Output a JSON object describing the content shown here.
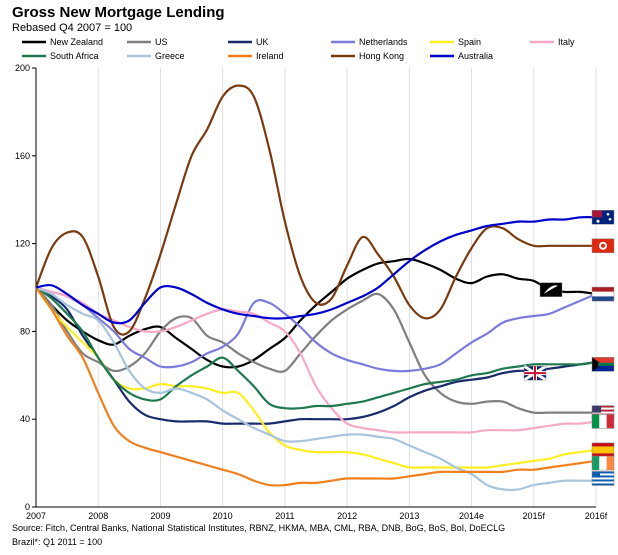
{
  "title": "Gross New Mortgage Lending",
  "subtitle": "Rebased Q4 2007 = 100",
  "footer": {
    "line1": "Source: Fitch, Central Banks, National Statistical Institutes, RBNZ, HKMA, MBA, CML, RBA, DNB, BoG, BoS, BoI, DoECLG",
    "line2": "Brazil*: Q1 2011 = 100"
  },
  "chart_data": {
    "type": "line",
    "title": "Gross New Mortgage Lending",
    "subtitle": "Rebased Q4 2007 = 100",
    "xlabel": "",
    "ylabel": "",
    "ylim": [
      0,
      200
    ],
    "yticks": [
      0,
      40,
      80,
      120,
      160,
      200
    ],
    "x_range": [
      2007,
      2016
    ],
    "xticks": [
      {
        "value": 2007,
        "label": "2007"
      },
      {
        "value": 2008,
        "label": "2008"
      },
      {
        "value": 2009,
        "label": "2009"
      },
      {
        "value": 2010,
        "label": "2010"
      },
      {
        "value": 2011,
        "label": "2011"
      },
      {
        "value": 2012,
        "label": "2012"
      },
      {
        "value": 2013,
        "label": "2013"
      },
      {
        "value": 2014,
        "label": "2014e"
      },
      {
        "value": 2015,
        "label": "2015f"
      },
      {
        "value": 2016,
        "label": "2016f"
      }
    ],
    "grid": "vertical",
    "legend_position": "top",
    "flags": [
      {
        "country": "Australia",
        "value": 132
      },
      {
        "country": "Hong Kong",
        "value": 119
      },
      {
        "country": "New Zealand",
        "value": 99
      },
      {
        "country": "Netherlands",
        "value": 97
      },
      {
        "country": "UK",
        "value": 61
      },
      {
        "country": "South Africa",
        "value": 65
      },
      {
        "country": "US",
        "value": 43
      },
      {
        "country": "Italy",
        "value": 39
      },
      {
        "country": "Spain",
        "value": 26
      },
      {
        "country": "Ireland",
        "value": 20
      },
      {
        "country": "Greece",
        "value": 13
      }
    ],
    "series": [
      {
        "name": "New Zealand",
        "color": "#000000",
        "x": [
          2007,
          2007.25,
          2007.5,
          2007.75,
          2008,
          2008.25,
          2008.5,
          2008.75,
          2009,
          2009.25,
          2009.5,
          2009.75,
          2010,
          2010.25,
          2010.5,
          2010.75,
          2011,
          2011.25,
          2011.5,
          2011.75,
          2012,
          2012.25,
          2012.5,
          2012.75,
          2013,
          2013.25,
          2013.5,
          2013.75,
          2014,
          2014.25,
          2014.5,
          2014.75,
          2015,
          2015.25,
          2015.5,
          2015.75,
          2016
        ],
        "y": [
          100,
          92,
          85,
          80,
          76,
          74,
          78,
          81,
          82,
          77,
          72,
          67,
          64,
          64,
          67,
          72,
          77,
          85,
          92,
          98,
          104,
          108,
          111,
          112,
          113,
          111,
          108,
          104,
          102,
          105,
          106,
          104,
          103,
          99,
          98,
          98,
          97
        ]
      },
      {
        "name": "US",
        "color": "#7f7f7f",
        "x": [
          2007,
          2007.25,
          2007.5,
          2007.75,
          2008,
          2008.25,
          2008.5,
          2008.75,
          2009,
          2009.25,
          2009.5,
          2009.75,
          2010,
          2010.25,
          2010.5,
          2010.75,
          2011,
          2011.25,
          2011.5,
          2011.75,
          2012,
          2012.25,
          2012.5,
          2012.75,
          2013,
          2013.25,
          2013.5,
          2013.75,
          2014,
          2014.25,
          2014.5,
          2014.75,
          2015,
          2015.25,
          2015.5,
          2015.75,
          2016
        ],
        "y": [
          100,
          92,
          80,
          70,
          66,
          62,
          64,
          70,
          80,
          86,
          86,
          78,
          75,
          70,
          66,
          63,
          62,
          70,
          78,
          85,
          90,
          94,
          97,
          90,
          75,
          60,
          52,
          48,
          47,
          48,
          48,
          45,
          43,
          43,
          43,
          43,
          43
        ]
      },
      {
        "name": "UK",
        "color": "#1a2a6c",
        "x": [
          2007,
          2007.25,
          2007.5,
          2007.75,
          2008,
          2008.25,
          2008.5,
          2008.75,
          2009,
          2009.25,
          2009.5,
          2009.75,
          2010,
          2010.25,
          2010.5,
          2010.75,
          2011,
          2011.25,
          2011.5,
          2011.75,
          2012,
          2012.25,
          2012.5,
          2012.75,
          2013,
          2013.25,
          2013.5,
          2013.75,
          2014,
          2014.25,
          2014.5,
          2014.75,
          2015,
          2015.25,
          2015.5,
          2015.75,
          2016
        ],
        "y": [
          100,
          96,
          90,
          78,
          68,
          58,
          48,
          42,
          40,
          39,
          39,
          39,
          38,
          38,
          38,
          38,
          39,
          40,
          40,
          40,
          40,
          41,
          43,
          46,
          50,
          53,
          55,
          57,
          58,
          59,
          61,
          62,
          62,
          63,
          64,
          65,
          66
        ]
      },
      {
        "name": "Netherlands",
        "color": "#7b7bdc",
        "x": [
          2007,
          2007.25,
          2007.5,
          2007.75,
          2008,
          2008.25,
          2008.5,
          2008.75,
          2009,
          2009.25,
          2009.5,
          2009.75,
          2010,
          2010.25,
          2010.5,
          2010.75,
          2011,
          2011.25,
          2011.5,
          2011.75,
          2012,
          2012.25,
          2012.5,
          2012.75,
          2013,
          2013.25,
          2013.5,
          2013.75,
          2014,
          2014.25,
          2014.5,
          2014.75,
          2015,
          2015.25,
          2015.5,
          2015.75,
          2016
        ],
        "y": [
          100,
          98,
          96,
          92,
          86,
          80,
          72,
          68,
          64,
          64,
          66,
          70,
          73,
          79,
          93,
          93,
          88,
          82,
          75,
          70,
          67,
          65,
          63,
          62,
          62,
          63,
          65,
          70,
          75,
          79,
          84,
          86,
          87,
          88,
          91,
          94,
          97
        ]
      },
      {
        "name": "Spain",
        "color": "#ffee22",
        "x": [
          2007,
          2007.25,
          2007.5,
          2007.75,
          2008,
          2008.25,
          2008.5,
          2008.75,
          2009,
          2009.25,
          2009.5,
          2009.75,
          2010,
          2010.25,
          2010.5,
          2010.75,
          2011,
          2011.25,
          2011.5,
          2011.75,
          2012,
          2012.25,
          2012.5,
          2012.75,
          2013,
          2013.25,
          2013.5,
          2013.75,
          2014,
          2014.25,
          2014.5,
          2014.75,
          2015,
          2015.25,
          2015.5,
          2015.75,
          2016
        ],
        "y": [
          100,
          90,
          82,
          75,
          68,
          58,
          54,
          54,
          56,
          55,
          55,
          54,
          52,
          52,
          44,
          34,
          28,
          26,
          25,
          25,
          25,
          24,
          22,
          20,
          18,
          18,
          18,
          18,
          18,
          18,
          19,
          20,
          21,
          22,
          24,
          25,
          26
        ]
      },
      {
        "name": "Italy",
        "color": "#f5a8c8",
        "x": [
          2007,
          2007.25,
          2007.5,
          2007.75,
          2008,
          2008.25,
          2008.5,
          2008.75,
          2009,
          2009.25,
          2009.5,
          2009.75,
          2010,
          2010.25,
          2010.5,
          2010.75,
          2011,
          2011.25,
          2011.5,
          2011.75,
          2012,
          2012.25,
          2012.5,
          2012.75,
          2013,
          2013.25,
          2013.5,
          2013.75,
          2014,
          2014.25,
          2014.5,
          2014.75,
          2015,
          2015.25,
          2015.5,
          2015.75,
          2016
        ],
        "y": [
          100,
          98,
          96,
          93,
          88,
          85,
          82,
          80,
          80,
          82,
          85,
          88,
          90,
          89,
          88,
          84,
          80,
          70,
          55,
          45,
          38,
          36,
          35,
          34,
          34,
          34,
          34,
          34,
          34,
          35,
          35,
          35,
          36,
          37,
          38,
          38,
          39
        ]
      },
      {
        "name": "South Africa",
        "color": "#1e7a4e",
        "x": [
          2007,
          2007.25,
          2007.5,
          2007.75,
          2008,
          2008.25,
          2008.5,
          2008.75,
          2009,
          2009.25,
          2009.5,
          2009.75,
          2010,
          2010.25,
          2010.5,
          2010.75,
          2011,
          2011.25,
          2011.5,
          2011.75,
          2012,
          2012.25,
          2012.5,
          2012.75,
          2013,
          2013.25,
          2013.5,
          2013.75,
          2014,
          2014.25,
          2014.5,
          2014.75,
          2015,
          2015.25,
          2015.5,
          2015.75,
          2016
        ],
        "y": [
          100,
          95,
          88,
          80,
          68,
          58,
          52,
          49,
          49,
          55,
          60,
          64,
          68,
          62,
          55,
          47,
          45,
          45,
          46,
          46,
          47,
          48,
          50,
          52,
          54,
          56,
          57,
          58,
          60,
          61,
          63,
          64,
          65,
          65,
          65,
          65,
          66
        ]
      },
      {
        "name": "Greece",
        "color": "#a8c4dc",
        "x": [
          2007,
          2007.25,
          2007.5,
          2007.75,
          2008,
          2008.25,
          2008.5,
          2008.75,
          2009,
          2009.25,
          2009.5,
          2009.75,
          2010,
          2010.25,
          2010.5,
          2010.75,
          2011,
          2011.25,
          2011.5,
          2011.75,
          2012,
          2012.25,
          2012.5,
          2012.75,
          2013,
          2013.25,
          2013.5,
          2013.75,
          2014,
          2014.25,
          2014.5,
          2014.75,
          2015,
          2015.25,
          2015.5,
          2015.75,
          2016
        ],
        "y": [
          100,
          97,
          92,
          88,
          85,
          75,
          62,
          54,
          52,
          54,
          52,
          49,
          44,
          40,
          36,
          33,
          30,
          30,
          31,
          32,
          33,
          33,
          32,
          31,
          28,
          25,
          22,
          18,
          15,
          10,
          8,
          8,
          10,
          11,
          12,
          12,
          12
        ]
      },
      {
        "name": "Ireland",
        "color": "#f0801e",
        "x": [
          2007,
          2007.25,
          2007.5,
          2007.75,
          2008,
          2008.25,
          2008.5,
          2008.75,
          2009,
          2009.25,
          2009.5,
          2009.75,
          2010,
          2010.25,
          2010.5,
          2010.75,
          2011,
          2011.25,
          2011.5,
          2011.75,
          2012,
          2012.25,
          2012.5,
          2012.75,
          2013,
          2013.25,
          2013.5,
          2013.75,
          2014,
          2014.25,
          2014.5,
          2014.75,
          2015,
          2015.25,
          2015.5,
          2015.75,
          2016
        ],
        "y": [
          100,
          90,
          78,
          68,
          52,
          37,
          30,
          27,
          25,
          23,
          21,
          19,
          17,
          15,
          12,
          10,
          10,
          11,
          11,
          12,
          13,
          13,
          13,
          13,
          14,
          15,
          16,
          16,
          16,
          16,
          16,
          17,
          17,
          18,
          19,
          20,
          21
        ]
      },
      {
        "name": "Hong Kong",
        "color": "#7a3a10",
        "x": [
          2007,
          2007.25,
          2007.5,
          2007.75,
          2008,
          2008.25,
          2008.5,
          2008.75,
          2009,
          2009.25,
          2009.5,
          2009.75,
          2010,
          2010.25,
          2010.5,
          2010.75,
          2011,
          2011.25,
          2011.5,
          2011.75,
          2012,
          2012.25,
          2012.5,
          2012.75,
          2013,
          2013.25,
          2013.5,
          2013.75,
          2014,
          2014.25,
          2014.5,
          2014.75,
          2015,
          2015.25,
          2015.5,
          2015.75,
          2016
        ],
        "y": [
          100,
          118,
          125,
          123,
          105,
          82,
          80,
          95,
          115,
          138,
          160,
          172,
          187,
          192,
          187,
          163,
          130,
          105,
          93,
          95,
          110,
          123,
          115,
          105,
          92,
          86,
          90,
          105,
          118,
          127,
          127,
          122,
          119,
          119,
          119,
          119,
          119
        ]
      },
      {
        "name": "Australia",
        "color": "#0000cc",
        "x": [
          2007,
          2007.25,
          2007.5,
          2007.75,
          2008,
          2008.25,
          2008.5,
          2008.75,
          2009,
          2009.25,
          2009.5,
          2009.75,
          2010,
          2010.25,
          2010.5,
          2010.75,
          2011,
          2011.25,
          2011.5,
          2011.75,
          2012,
          2012.25,
          2012.5,
          2012.75,
          2013,
          2013.25,
          2013.5,
          2013.75,
          2014,
          2014.25,
          2014.5,
          2014.75,
          2015,
          2015.25,
          2015.5,
          2015.75,
          2016
        ],
        "y": [
          100,
          101,
          97,
          92,
          88,
          84,
          85,
          93,
          100,
          100,
          97,
          93,
          90,
          88,
          87,
          86,
          86,
          87,
          88,
          90,
          93,
          96,
          100,
          106,
          112,
          117,
          121,
          124,
          126,
          128,
          129,
          130,
          130,
          131,
          131,
          132,
          132
        ]
      }
    ]
  }
}
